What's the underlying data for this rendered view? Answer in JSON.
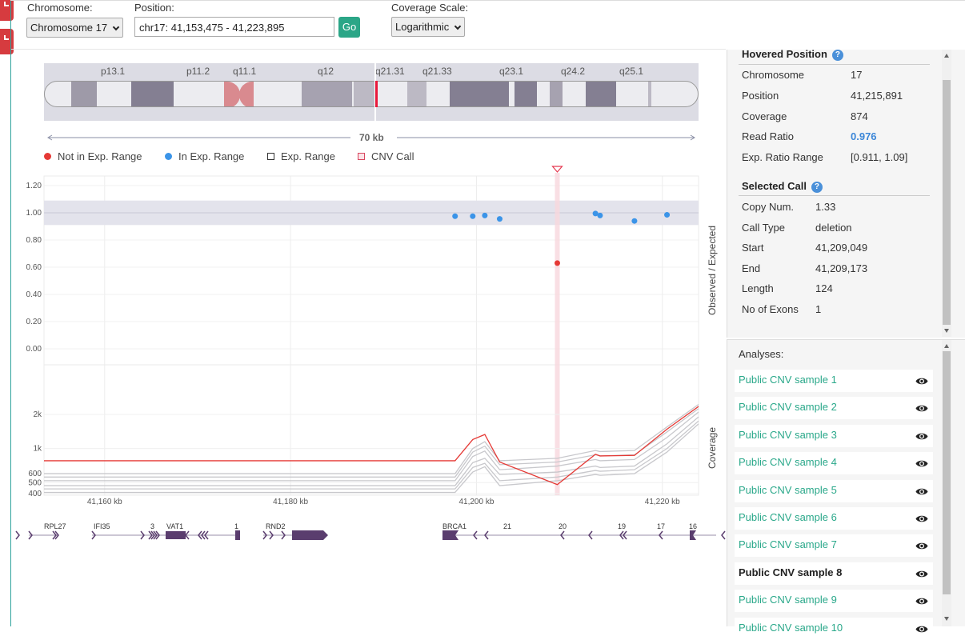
{
  "toolbar": {
    "chromosome_label": "Chromosome:",
    "chromosome_value": "Chromosome 17",
    "position_label": "Position:",
    "position_value": "chr17: 41,153,475 - 41,223,895",
    "go_label": "Go",
    "coverage_label": "Coverage Scale:",
    "coverage_value": "Logarithmic"
  },
  "ideogram": {
    "bands": [
      "p13.1",
      "p11.2",
      "q11.1",
      "q12",
      "q21.31",
      "q21.33",
      "q23.1",
      "q24.2",
      "q25.1"
    ],
    "scale_label": "70 kb"
  },
  "legend": {
    "not_in_range": "Not in Exp. Range",
    "in_range": "In Exp. Range",
    "exp_range": "Exp. Range",
    "cnv_call": "CNV Call"
  },
  "chart_data": [
    {
      "type": "scatter",
      "ylabel": "Observed / Expected",
      "ylim": [
        -0.1,
        1.25
      ],
      "yticks": [
        "1.20",
        "1.00",
        "0.80",
        "0.60",
        "0.40",
        "0.20",
        "0.00"
      ],
      "expected_band": [
        0.91,
        1.09
      ],
      "series": [
        {
          "name": "In Exp. Range",
          "color": "#3b94e8",
          "x": [
            41197700,
            41199600,
            41200900,
            41202500,
            41212800,
            41213300,
            41217000,
            41220500
          ],
          "y": [
            0.975,
            0.975,
            0.98,
            0.955,
            0.995,
            0.98,
            0.94,
            0.985
          ]
        },
        {
          "name": "Not in Exp. Range",
          "color": "#e53935",
          "x": [
            41208700
          ],
          "y": [
            0.63
          ]
        }
      ],
      "cnv_call_x": 41208700
    },
    {
      "type": "line",
      "ylabel": "Coverage",
      "scale": "log",
      "yticks": [
        "2k",
        "1k",
        "600",
        "500",
        "400"
      ],
      "ytick_values": [
        2000,
        1000,
        600,
        500,
        400
      ],
      "xticks": [
        "41,160 kb",
        "41,180 kb",
        "41,200 kb",
        "41,220 kb"
      ],
      "xtick_values": [
        41160000,
        41180000,
        41200000,
        41220000
      ],
      "x": [
        41153475,
        41197700,
        41199600,
        41200900,
        41202500,
        41208700,
        41212800,
        41213300,
        41217000,
        41220500,
        41223895
      ],
      "series": [
        {
          "name": "Public CNV sample 8",
          "color": "#e53935",
          "values": [
            780,
            780,
            1200,
            1330,
            760,
            480,
            890,
            860,
            870,
            1480,
            2350
          ]
        },
        {
          "color": "#c8c8cc",
          "values": [
            470,
            470,
            750,
            820,
            590,
            620,
            700,
            680,
            700,
            1100,
            1900
          ]
        },
        {
          "color": "#c8c8cc",
          "values": [
            520,
            520,
            850,
            950,
            650,
            700,
            800,
            780,
            800,
            1250,
            2100
          ]
        },
        {
          "color": "#c8c8cc",
          "values": [
            560,
            560,
            930,
            1050,
            720,
            760,
            880,
            860,
            880,
            1400,
            2250
          ]
        },
        {
          "color": "#c8c8cc",
          "values": [
            600,
            600,
            1000,
            1150,
            780,
            820,
            960,
            940,
            960,
            1550,
            2450
          ]
        },
        {
          "color": "#c8c8cc",
          "values": [
            440,
            440,
            680,
            740,
            520,
            560,
            640,
            630,
            650,
            1000,
            1750
          ]
        },
        {
          "color": "#c8c8cc",
          "values": [
            410,
            410,
            620,
            690,
            470,
            520,
            590,
            580,
            600,
            930,
            1650
          ]
        }
      ]
    }
  ],
  "genes": {
    "labels": [
      "RPL27",
      "IFI35",
      "3",
      "VAT1",
      "1",
      "RND2",
      "BRCA1",
      "21",
      "20",
      "19",
      "17",
      "16"
    ]
  },
  "hovered": {
    "title": "Hovered Position",
    "rows": [
      {
        "k": "Chromosome",
        "v": "17"
      },
      {
        "k": "Position",
        "v": "41,215,891"
      },
      {
        "k": "Coverage",
        "v": "874"
      },
      {
        "k": "Read Ratio",
        "v": "0.976"
      },
      {
        "k": "Exp. Ratio Range",
        "v": "[0.911, 1.09]"
      }
    ]
  },
  "selected_call": {
    "title": "Selected Call",
    "rows": [
      {
        "k": "Copy Num.",
        "v": "1.33"
      },
      {
        "k": "Call Type",
        "v": "deletion"
      },
      {
        "k": "Start",
        "v": "41,209,049"
      },
      {
        "k": "End",
        "v": "41,209,173"
      },
      {
        "k": "Length",
        "v": "124"
      },
      {
        "k": "No of Exons",
        "v": "1"
      }
    ]
  },
  "analyses": {
    "title": "Analyses:",
    "items": [
      "Public CNV sample 1",
      "Public CNV sample 2",
      "Public CNV sample 3",
      "Public CNV sample 4",
      "Public CNV sample 5",
      "Public CNV sample 6",
      "Public CNV sample 7",
      "Public CNV sample 8",
      "Public CNV sample 9",
      "Public CNV sample 10"
    ],
    "selected": "Public CNV sample 8"
  },
  "colors": {
    "accent": "#2ba687",
    "not_in_range": "#e53935",
    "in_range": "#3b94e8",
    "gene": "#5a3d6e",
    "cnv_highlight": "#f8d7dd"
  }
}
